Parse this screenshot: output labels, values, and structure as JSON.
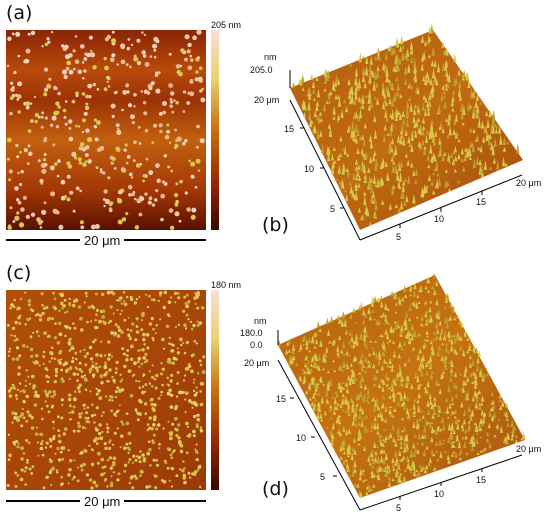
{
  "panels": {
    "a": {
      "label": "(a)",
      "colorbar_max": "205 nm",
      "scale_bar": "20 μm"
    },
    "b": {
      "label": "(b)",
      "z_unit": "nm",
      "z_top": "205.0",
      "axis_back_left": "20 μm",
      "axis_front_right": "20 μm",
      "ticks_left": [
        "15",
        "10",
        "5"
      ],
      "ticks_right": [
        "5",
        "10",
        "15"
      ]
    },
    "c": {
      "label": "(c)",
      "colorbar_max": "180 nm",
      "scale_bar": "20 μm"
    },
    "d": {
      "label": "(d)",
      "z_unit": "nm",
      "z_top": "180.0",
      "z_zero": "0.0",
      "axis_back_left": "20 μm",
      "axis_front_right": "20 μm",
      "ticks_left": [
        "15",
        "10",
        "5"
      ],
      "ticks_right": [
        "5",
        "10",
        "15"
      ]
    }
  },
  "colors": {
    "dark_brown": "#6a1400",
    "mid_red": "#a83a08",
    "orange": "#c8700c",
    "yellow_grain": "#d8c850",
    "pale_grain": "#f0c8b0",
    "colorbar_top": "#fbe0d8"
  }
}
